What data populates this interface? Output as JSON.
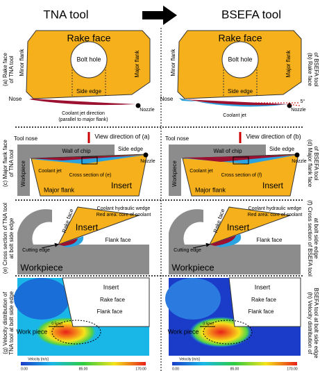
{
  "header": {
    "left": "TNA tool",
    "right": "BSEFA tool"
  },
  "panels": [
    {
      "side_label": [
        "(a) Rake face",
        "of TNA tool"
      ],
      "texts": [
        "Rake face",
        "Bolt hole",
        "Minor flank",
        "Major flank",
        "Nose",
        "Side edge",
        "Coolant jet direction",
        "(parallel to major flank)",
        "Nozzle"
      ]
    },
    {
      "side_label": [
        "(b) Rake face",
        "of BSEFA tool"
      ],
      "texts": [
        "Rake face",
        "Bolt hole",
        "Minor flank",
        "Major flank",
        "Nose",
        "Side edge",
        "Coolant jet",
        "Nozzle",
        "5°"
      ]
    },
    {
      "side_label": [
        "(c) Major flank face",
        "of TNA tool"
      ],
      "texts": [
        "View direction of (a)",
        "Tool nose",
        "Wall of chip",
        "Side edge",
        "Nozzle",
        "Workpiece",
        "Coolant jet",
        "Cross section of (e)",
        "Major flank",
        "Insert"
      ]
    },
    {
      "side_label": [
        "(d) Major flank face",
        "of BSEFA tool"
      ],
      "texts": [
        "View direction of (b)",
        "Tool nose",
        "Wall of chip",
        "Side edge",
        "Nozzle",
        "Workpiece",
        "Coolant jet",
        "Cross section of (f)",
        "Major flank",
        "Insert"
      ]
    },
    {
      "side_label": [
        "(e) Cross section of TNA tool",
        "at bolt side edge"
      ],
      "texts": [
        "Coolant hydraulic wedge",
        "Red area: core of coolant",
        "Rake face",
        "Insert",
        "Flank face",
        "Cutting edge",
        "Workpiece"
      ]
    },
    {
      "side_label": [
        "(f) Cross section of BSEFA tool",
        "at bolt side edge"
      ],
      "texts": [
        "Coolant hydraulic wedge",
        "Red area: core of coolant",
        "Rake face",
        "Insert",
        "Flank face",
        "Cutting edge",
        "Workpiece"
      ]
    },
    {
      "side_label": [
        "(g) Velocity distribution of",
        "TNA tool at bolt side edge"
      ],
      "texts": [
        "Insert",
        "Rake face",
        "Flank face",
        "Work piece",
        "0.5mm",
        "Velocity [m/s]",
        "0.00",
        "85.00",
        "170.00"
      ]
    },
    {
      "side_label": [
        "(h) Velocity distribution of",
        "BSEFA tool at bolt side edge"
      ],
      "texts": [
        "Insert",
        "Rake face",
        "Flank face",
        "Work piece",
        "0.5mm",
        "Velocity [m/s]",
        "0.00",
        "85.00",
        "170.00"
      ]
    }
  ]
}
